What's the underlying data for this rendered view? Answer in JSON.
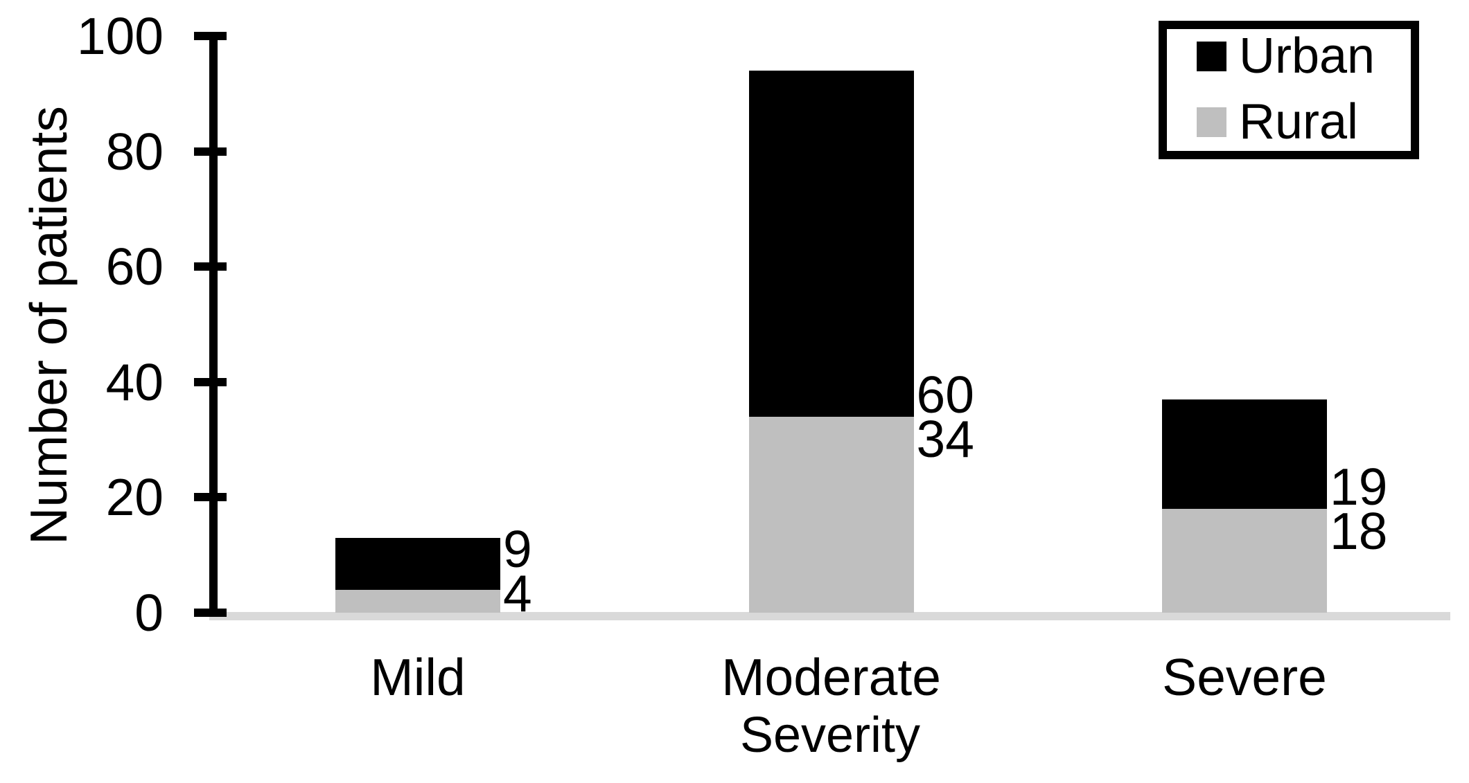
{
  "chart_data": {
    "type": "bar",
    "stacked": true,
    "categories": [
      "Mild",
      "Moderate",
      "Severe"
    ],
    "series": [
      {
        "name": "Urban",
        "color": "#000000",
        "values": [
          9,
          60,
          19
        ]
      },
      {
        "name": "Rural",
        "color": "#bfbfbf",
        "values": [
          4,
          34,
          18
        ]
      }
    ],
    "xlabel": "Severity",
    "ylabel": "Number of patients",
    "ylim": [
      0,
      100
    ],
    "yticks": [
      0,
      20,
      40,
      60,
      80,
      100
    ],
    "grid": false,
    "legend_position": "top-right",
    "data_labels": true,
    "axis_color": "#000000",
    "baseline_color": "#d9d9d9"
  }
}
